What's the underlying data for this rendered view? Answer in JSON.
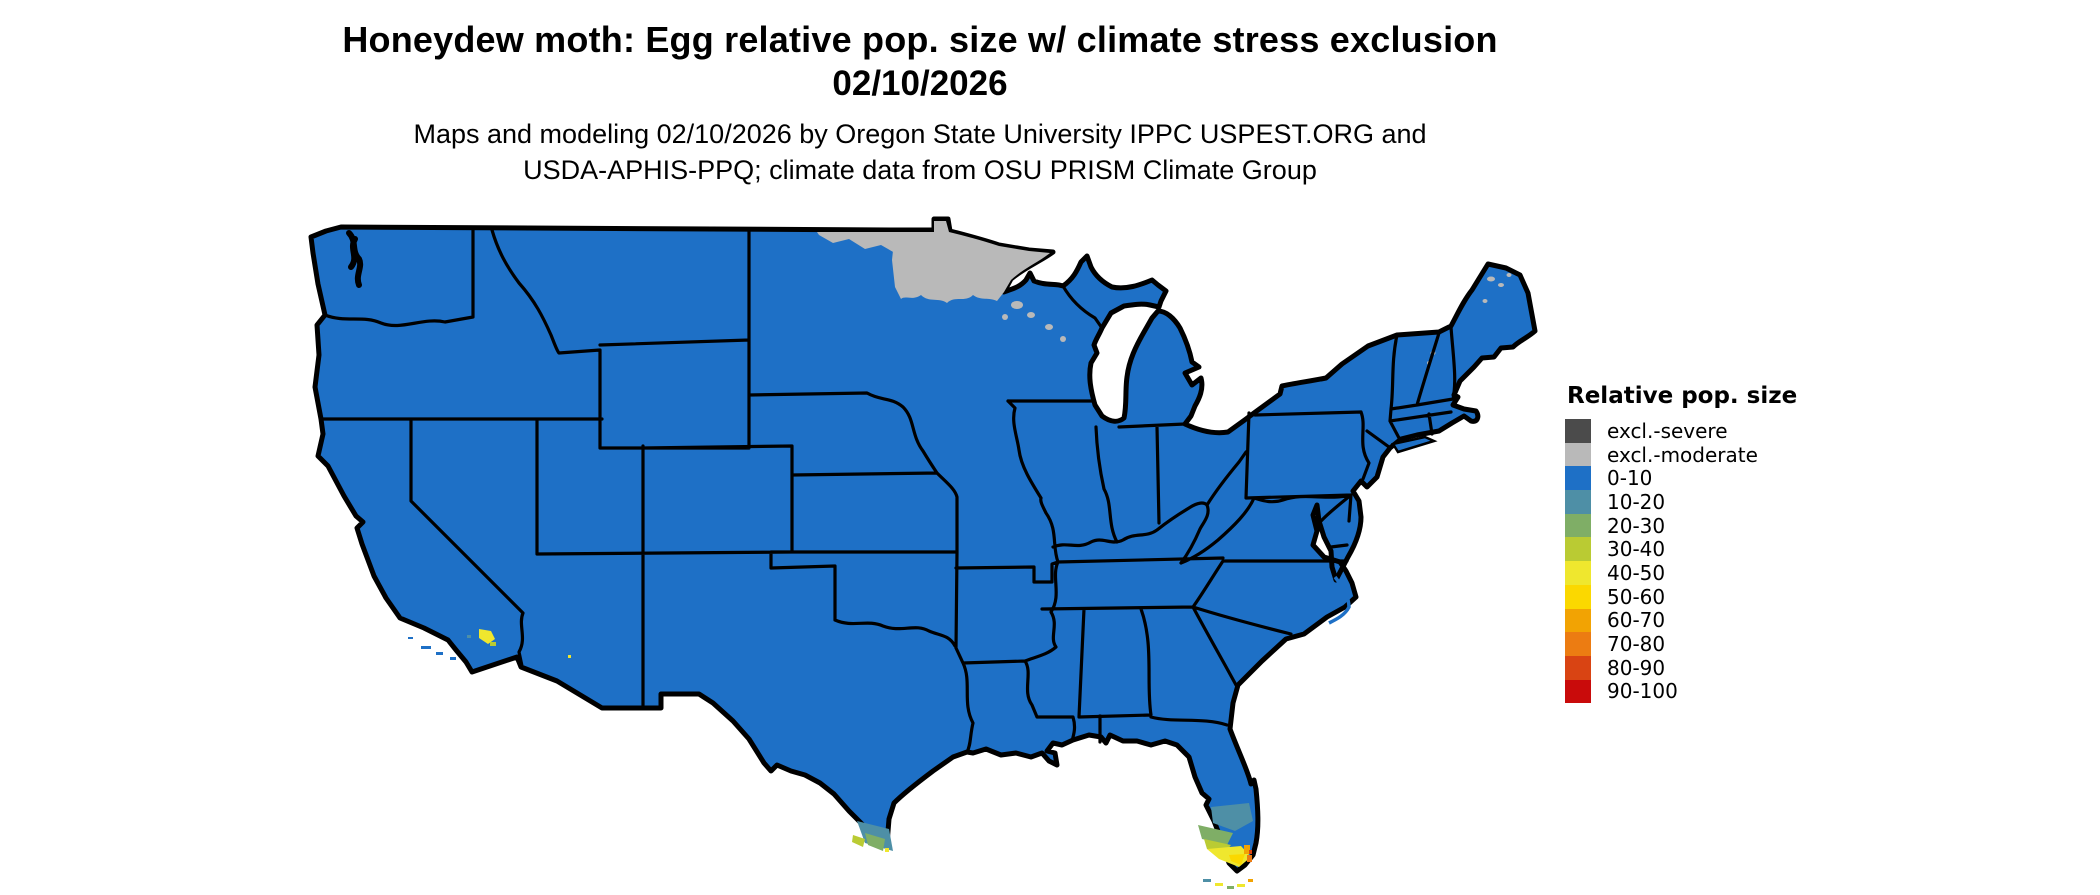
{
  "title": {
    "line1": "Honeydew moth: Egg relative pop. size w/ climate stress exclusion",
    "line2": "02/10/2026"
  },
  "subtitle": {
    "line1": "Maps and modeling 02/10/2026 by Oregon State University IPPC USPEST.ORG and",
    "line2": "USDA-APHIS-PPQ; climate data from OSU PRISM Climate Group"
  },
  "legend": {
    "title": "Relative pop. size",
    "entries": [
      {
        "id": "severe",
        "label": "excl.-severe",
        "color": "#4B4B4B"
      },
      {
        "id": "moderate",
        "label": "excl.-moderate",
        "color": "#B9B9B9"
      },
      {
        "id": "b0",
        "label": "0-10",
        "color": "#1E70C6"
      },
      {
        "id": "b10",
        "label": "10-20",
        "color": "#4E8FA6"
      },
      {
        "id": "b20",
        "label": "20-30",
        "color": "#7FAE66"
      },
      {
        "id": "b30",
        "label": "30-40",
        "color": "#BACB33"
      },
      {
        "id": "b40",
        "label": "40-50",
        "color": "#EFE72E"
      },
      {
        "id": "b50",
        "label": "50-60",
        "color": "#FBD800"
      },
      {
        "id": "b60",
        "label": "60-70",
        "color": "#F2A303"
      },
      {
        "id": "b70",
        "label": "70-80",
        "color": "#EC7C12"
      },
      {
        "id": "b80",
        "label": "80-90",
        "color": "#D94413"
      },
      {
        "id": "b90",
        "label": "90-100",
        "color": "#C90B0B"
      }
    ]
  },
  "map": {
    "kind": "CONUS choropleth raster, Albers-style projection, black state borders",
    "border_color": "#000000",
    "background_color": "#FFFFFF",
    "regions": [
      {
        "area": "contiguous United States (most states)",
        "category": "0-10"
      },
      {
        "area": "northern Minnesota incl. arrowhead, strip along NE North Dakota border, specks in N Wisconsin",
        "category": "excl.-moderate"
      },
      {
        "area": "northern Maine and White Mountains NH specks",
        "category": "excl.-moderate"
      },
      {
        "area": "south Florida tip and Keys",
        "category": "gradient 10-90 (teal to orange/red)"
      },
      {
        "area": "lower Rio Grande Valley, Texas tip",
        "category": "10-40 patch with 40-50 speck"
      },
      {
        "area": "Los Angeles basin and SW Arizona specks",
        "category": "30-50 specks"
      }
    ]
  }
}
